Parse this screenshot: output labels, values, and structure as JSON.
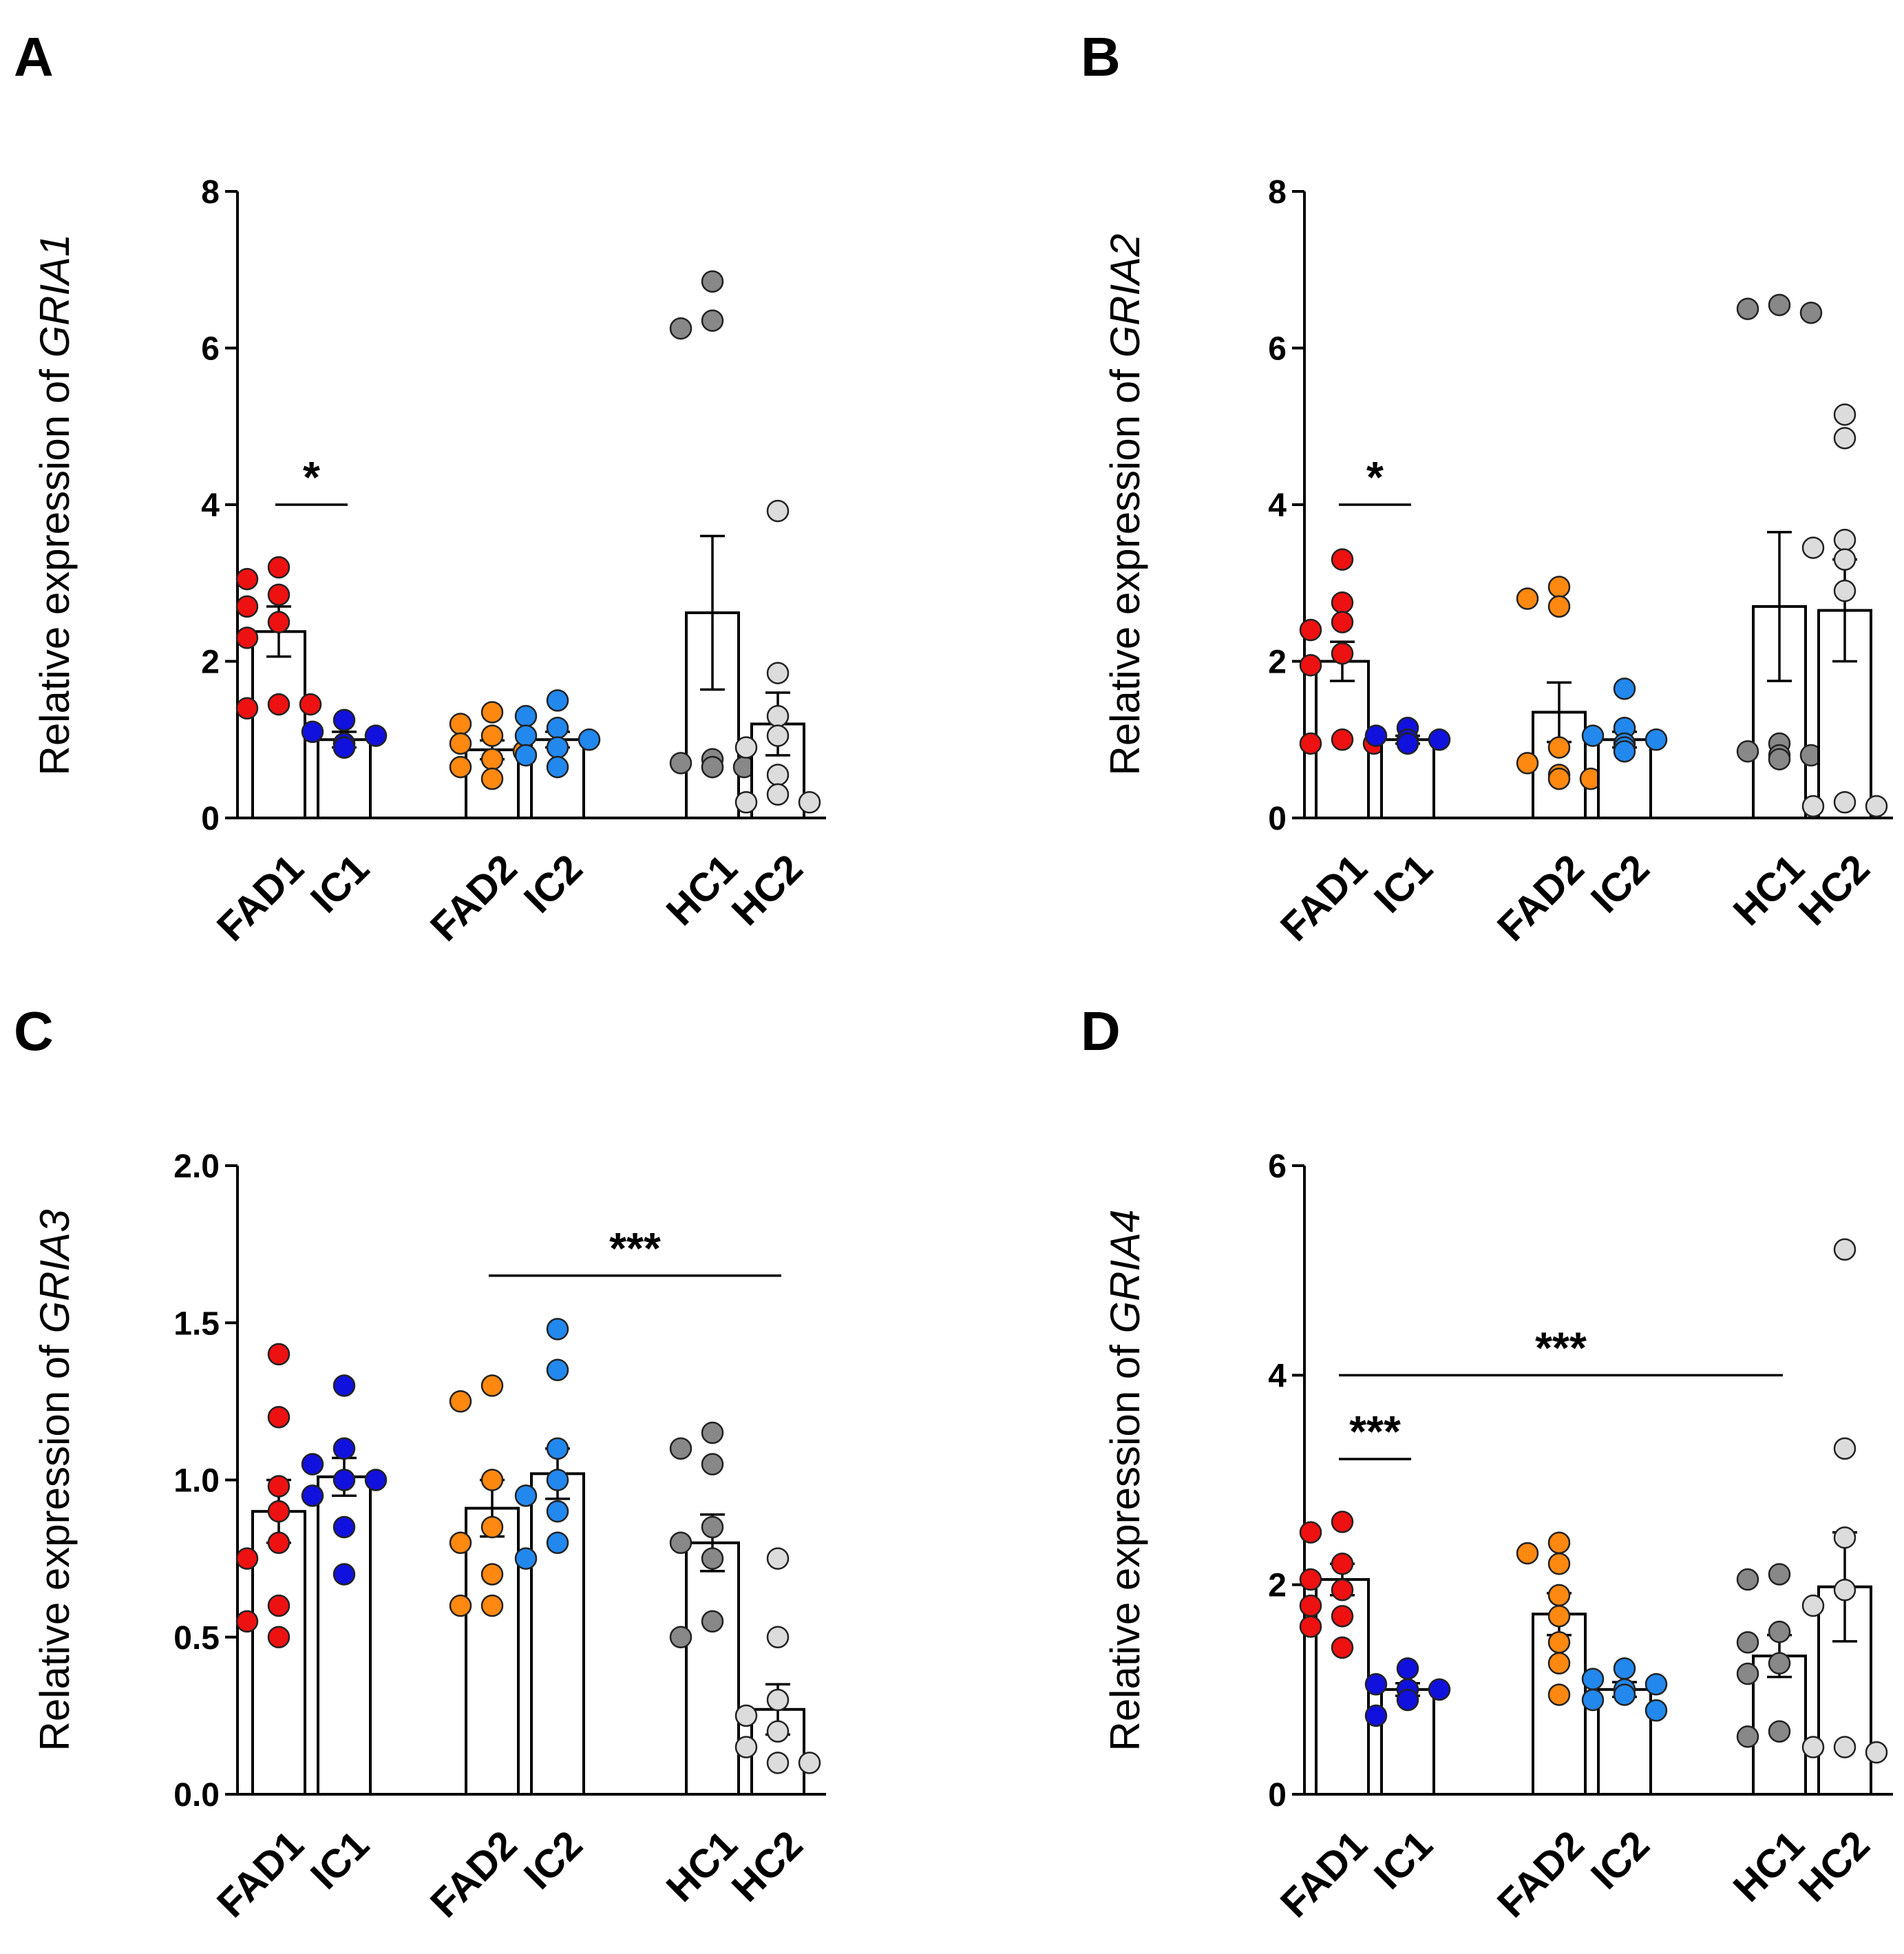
{
  "chart_data": [
    {
      "panel": "A",
      "type": "bar",
      "ylabel_prefix": "Relative expression of ",
      "gene": "GRIA1",
      "ylim": [
        0,
        8
      ],
      "ticks": [
        0,
        2,
        4,
        6,
        8
      ],
      "tick_labels": [
        "0",
        "2",
        "4",
        "6",
        "8"
      ],
      "categories": [
        "FAD1",
        "IC1",
        "FAD2",
        "IC2",
        "HC1",
        "HC2"
      ],
      "values": [
        2.38,
        1.0,
        0.87,
        1.0,
        2.62,
        1.2
      ],
      "sem": [
        0.32,
        0.1,
        0.12,
        0.1,
        0.98,
        0.4
      ],
      "points": [
        [
          3.2,
          3.05,
          2.85,
          2.7,
          2.5,
          2.3,
          1.45,
          1.4,
          1.45
        ],
        [
          1.25,
          1.1,
          1.05,
          0.95,
          0.95,
          0.9,
          0.9
        ],
        [
          1.35,
          1.2,
          1.05,
          0.95,
          0.85,
          0.75,
          0.65,
          0.5
        ],
        [
          1.5,
          1.3,
          1.15,
          1.05,
          1.0,
          0.9,
          0.8,
          0.65
        ],
        [
          6.85,
          6.35,
          6.25,
          0.75,
          0.7,
          0.65,
          0.65,
          0.65
        ],
        [
          3.92,
          1.85,
          1.3,
          1.05,
          0.9,
          0.55,
          0.3,
          0.2,
          0.2
        ]
      ],
      "significance": [
        {
          "from": 0,
          "to": 1,
          "y": 4.0,
          "label": "*"
        }
      ]
    },
    {
      "panel": "B",
      "type": "bar",
      "ylabel_prefix": "Relative expression of ",
      "gene": "GRIA2",
      "ylim": [
        0,
        8
      ],
      "ticks": [
        0,
        2,
        4,
        6,
        8
      ],
      "tick_labels": [
        "0",
        "2",
        "4",
        "6",
        "8"
      ],
      "categories": [
        "FAD1",
        "IC1",
        "FAD2",
        "IC2",
        "HC1",
        "HC2"
      ],
      "values": [
        2.0,
        1.0,
        1.35,
        1.0,
        2.7,
        2.65
      ],
      "sem": [
        0.25,
        0.05,
        0.38,
        0.1,
        0.95,
        0.65
      ],
      "points": [
        [
          3.3,
          2.75,
          2.5,
          2.4,
          2.1,
          1.95,
          1.0,
          0.95,
          0.95
        ],
        [
          1.15,
          1.05,
          1.0,
          1.0,
          0.95
        ],
        [
          2.95,
          2.8,
          2.7,
          0.9,
          0.7,
          0.55,
          0.5,
          0.5
        ],
        [
          1.65,
          1.15,
          1.05,
          1.0,
          0.95,
          0.9,
          0.85
        ],
        [
          6.55,
          6.5,
          6.45,
          0.95,
          0.85,
          0.8,
          0.8,
          0.75
        ],
        [
          5.15,
          4.85,
          3.55,
          3.45,
          3.3,
          2.9,
          0.2,
          0.15,
          0.15
        ]
      ],
      "significance": [
        {
          "from": 0,
          "to": 1,
          "y": 4.0,
          "label": "*"
        }
      ]
    },
    {
      "panel": "C",
      "type": "bar",
      "ylabel_prefix": "Relative expression of ",
      "gene": "GRIA3",
      "ylim": [
        0,
        2.0
      ],
      "ticks": [
        0,
        0.5,
        1.0,
        1.5,
        2.0
      ],
      "tick_labels": [
        "0.0",
        "0.5",
        "1.0",
        "1.5",
        "2.0"
      ],
      "categories": [
        "FAD1",
        "IC1",
        "FAD2",
        "IC2",
        "HC1",
        "HC2"
      ],
      "values": [
        0.9,
        1.01,
        0.91,
        1.02,
        0.8,
        0.27
      ],
      "sem": [
        0.1,
        0.06,
        0.09,
        0.08,
        0.09,
        0.08
      ],
      "points": [
        [
          1.4,
          1.2,
          0.98,
          0.9,
          0.8,
          0.75,
          0.6,
          0.55,
          0.5
        ],
        [
          1.3,
          1.1,
          1.05,
          1.0,
          1.0,
          0.95,
          0.85,
          0.7
        ],
        [
          1.3,
          1.25,
          1.0,
          0.85,
          0.8,
          0.7,
          0.6,
          0.6
        ],
        [
          1.48,
          1.35,
          1.1,
          1.0,
          0.95,
          0.9,
          0.8,
          0.75
        ],
        [
          1.15,
          1.1,
          1.05,
          0.85,
          0.8,
          0.75,
          0.55,
          0.5
        ],
        [
          0.75,
          0.5,
          0.3,
          0.25,
          0.2,
          0.15,
          0.1,
          0.1
        ]
      ],
      "significance": [
        {
          "from": 2,
          "to": 5,
          "y": 1.65,
          "label": "***"
        }
      ]
    },
    {
      "panel": "D",
      "type": "bar",
      "ylabel_prefix": "Relative expression of ",
      "gene": "GRIA4",
      "ylim": [
        0,
        6
      ],
      "ticks": [
        0,
        2,
        4,
        6
      ],
      "tick_labels": [
        "0",
        "2",
        "4",
        "6"
      ],
      "categories": [
        "FAD1",
        "IC1",
        "FAD2",
        "IC2",
        "HC1",
        "HC2"
      ],
      "values": [
        2.05,
        1.0,
        1.72,
        1.0,
        1.32,
        1.98
      ],
      "sem": [
        0.15,
        0.06,
        0.2,
        0.07,
        0.2,
        0.52
      ],
      "points": [
        [
          2.6,
          2.5,
          2.2,
          2.05,
          1.95,
          1.8,
          1.7,
          1.6,
          1.4
        ],
        [
          1.2,
          1.05,
          1.0,
          1.0,
          0.9,
          0.75
        ],
        [
          2.4,
          2.3,
          2.2,
          1.9,
          1.7,
          1.45,
          1.25,
          0.95
        ],
        [
          1.2,
          1.1,
          1.05,
          1.0,
          0.95,
          0.9,
          0.8
        ],
        [
          2.1,
          2.05,
          1.55,
          1.45,
          1.25,
          1.15,
          0.6,
          0.55
        ],
        [
          5.2,
          3.3,
          2.45,
          1.95,
          1.8,
          0.45,
          0.45,
          0.4
        ]
      ],
      "significance": [
        {
          "from": 0,
          "to": 1,
          "y": 3.2,
          "label": "***"
        },
        {
          "from": 0,
          "to": 4,
          "y": 4.0,
          "label": "***"
        }
      ]
    }
  ],
  "colors": {
    "FAD1": "#ee1111",
    "IC1": "#1111dd",
    "FAD2": "#ff8811",
    "IC2": "#2288ee",
    "HC1": "#888888",
    "HC2": "#dcdcdc"
  }
}
